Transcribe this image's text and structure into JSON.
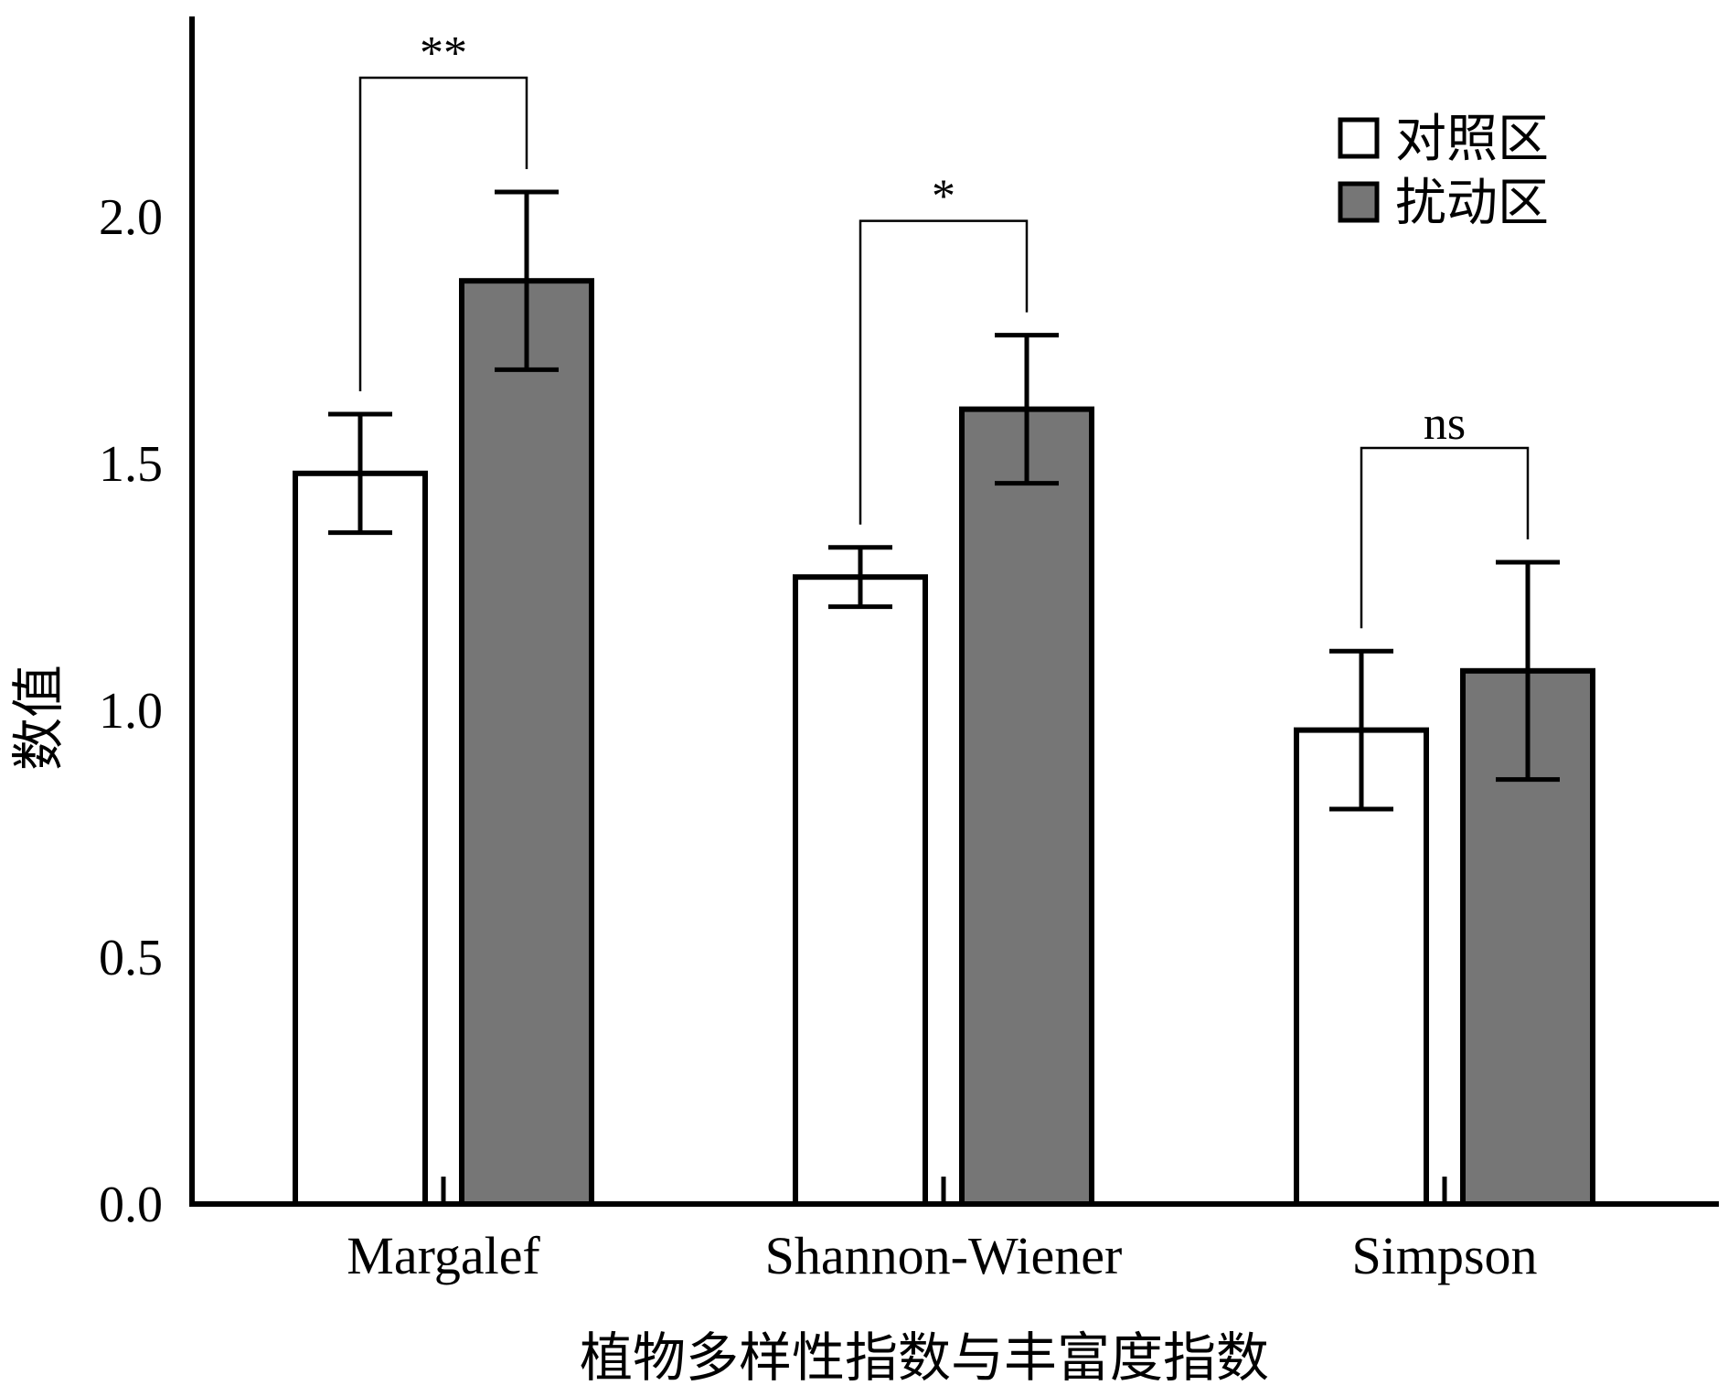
{
  "chart_data": {
    "type": "bar",
    "categories": [
      "Margalef",
      "Shannon-Wiener",
      "Simpson"
    ],
    "series": [
      {
        "name": "对照区",
        "color": "#ffffff",
        "values": [
          1.48,
          1.27,
          0.96
        ],
        "errors": [
          0.12,
          0.06,
          0.16
        ]
      },
      {
        "name": "扰动区",
        "color": "#767676",
        "values": [
          1.87,
          1.61,
          1.08
        ],
        "errors": [
          0.18,
          0.15,
          0.22
        ]
      }
    ],
    "significance": [
      "**",
      "*",
      "ns"
    ],
    "ylim": [
      0.0,
      2.3
    ],
    "yticks": [
      "0.0",
      "0.5",
      "1.0",
      "1.5",
      "2.0"
    ],
    "ylabel": "数值",
    "xlabel": "植物多样性指数与丰富度指数",
    "legend_position": "top-right",
    "grid": false
  }
}
